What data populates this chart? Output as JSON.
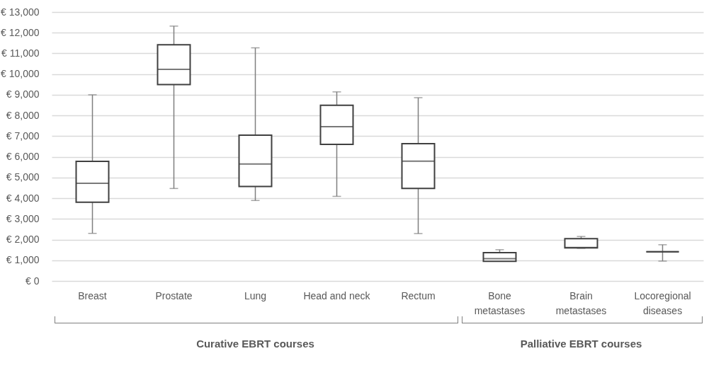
{
  "chart_data": {
    "type": "box",
    "categories": [
      "Breast",
      "Prostate",
      "Lung",
      "Head and neck",
      "Rectum",
      "Bone metastases",
      "Brain metastases",
      "Locoregional diseases"
    ],
    "boxes": [
      {
        "low": 2300,
        "q1": 3810,
        "median": 4720,
        "q3": 5780,
        "high": 9000
      },
      {
        "low": 4470,
        "q1": 9490,
        "median": 10230,
        "q3": 11420,
        "high": 12320
      },
      {
        "low": 3890,
        "q1": 4570,
        "median": 5650,
        "q3": 7050,
        "high": 11270
      },
      {
        "low": 4090,
        "q1": 6600,
        "median": 7460,
        "q3": 8490,
        "high": 9140
      },
      {
        "low": 2290,
        "q1": 4470,
        "median": 5790,
        "q3": 6640,
        "high": 8860
      },
      {
        "low": 950,
        "q1": 950,
        "median": 1080,
        "q3": 1370,
        "high": 1510
      },
      {
        "low": 1580,
        "q1": 1600,
        "median": 1620,
        "q3": 2040,
        "high": 2150
      },
      {
        "low": 960,
        "q1": 1410,
        "median": 1410,
        "q3": 1410,
        "high": 1750
      }
    ],
    "ylim": [
      0,
      13000
    ],
    "yticks": [
      {
        "value": 0,
        "label": "€ 0"
      },
      {
        "value": 1000,
        "label": "€ 1,000"
      },
      {
        "value": 2000,
        "label": "€ 2,000"
      },
      {
        "value": 3000,
        "label": "€ 3,000"
      },
      {
        "value": 4000,
        "label": "€ 4,000"
      },
      {
        "value": 5000,
        "label": "€ 5,000"
      },
      {
        "value": 6000,
        "label": "€ 6,000"
      },
      {
        "value": 7000,
        "label": "€ 7,000"
      },
      {
        "value": 8000,
        "label": "€ 8,000"
      },
      {
        "value": 9000,
        "label": "€ 9,000"
      },
      {
        "value": 10000,
        "label": "€ 10,000"
      },
      {
        "value": 11000,
        "label": "€ 11,000"
      },
      {
        "value": 12000,
        "label": "€ 12,000"
      },
      {
        "value": 13000,
        "label": "€ 13,000"
      }
    ],
    "grid": "y",
    "annotations": [
      "Curative EBRT courses",
      "Palliative EBRT courses"
    ]
  }
}
